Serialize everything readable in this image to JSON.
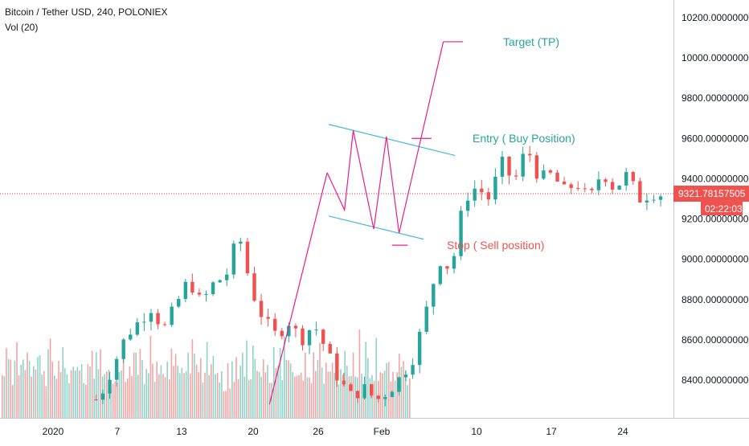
{
  "header": {
    "symbol_line": "Bitcoin / Tether USD, 240, POLONIEX",
    "volume_line": "Vol (20)"
  },
  "price_axis": {
    "labels": [
      "10200.00000000",
      "10000.00000000",
      "9800.00000000",
      "9600.00000000",
      "9400.00000000",
      "9200.00000000",
      "9000.00000000",
      "8800.00000000",
      "8600.00000000",
      "8400.00000000"
    ],
    "current_price_label": "9321.78157505",
    "countdown_label": "02:22:03"
  },
  "time_axis": {
    "labels": [
      "2020",
      "7",
      "13",
      "20",
      "26",
      "Feb",
      "10",
      "17",
      "24"
    ]
  },
  "annotations": {
    "target": "Target (TP)",
    "entry": "Entry ( Buy Position)",
    "stop": "Stop ( Sell position)"
  },
  "colors": {
    "up": "#26a69a",
    "down": "#ef5350",
    "vol_up": "#8fd3c9",
    "vol_down": "#f5a3a3",
    "channel": "#40bcd8",
    "pattern": "#e91e8c",
    "price_line": "#e53935",
    "target_text": "#26a69a",
    "stop_text": "#ef5350"
  },
  "chart_data": {
    "type": "candlestick",
    "symbol": "BTC/USDT",
    "timeframe": "240",
    "exchange": "POLONIEX",
    "ylim": [
      8220,
      10300
    ],
    "yticks": [
      10200,
      10000,
      9800,
      9600,
      9400,
      9200,
      9000,
      8800,
      8600,
      8400
    ],
    "last_price": 9321.78157505,
    "ohlc_path": [
      [
        0,
        8200
      ],
      [
        3,
        8260
      ],
      [
        6,
        8200
      ],
      [
        8,
        8330
      ],
      [
        10,
        8620
      ],
      [
        12,
        8760
      ],
      [
        13,
        8650
      ],
      [
        15,
        8900
      ],
      [
        16,
        8780
      ],
      [
        17,
        8880
      ],
      [
        18,
        8920
      ],
      [
        19,
        9130
      ],
      [
        20,
        8850
      ],
      [
        21,
        8700
      ],
      [
        22,
        8620
      ],
      [
        23,
        8690
      ],
      [
        24,
        8600
      ],
      [
        25,
        8680
      ],
      [
        26,
        8550
      ],
      [
        27,
        8400
      ],
      [
        28,
        8320
      ],
      [
        29,
        8360
      ],
      [
        30,
        8300
      ],
      [
        31,
        8350
      ],
      [
        32,
        8420
      ],
      [
        33,
        8520
      ],
      [
        34,
        8750
      ],
      [
        35,
        9000
      ],
      [
        36,
        8950
      ],
      [
        37,
        9300
      ],
      [
        38,
        9360
      ],
      [
        39,
        9300
      ],
      [
        40,
        9480
      ],
      [
        41,
        9380
      ],
      [
        42,
        9560
      ],
      [
        43,
        9400
      ],
      [
        44,
        9420
      ],
      [
        45,
        9340
      ],
      [
        46,
        9380
      ],
      [
        47,
        9290
      ],
      [
        48,
        9440
      ],
      [
        49,
        9350
      ],
      [
        50,
        9420
      ],
      [
        51,
        9300
      ],
      [
        52,
        9330
      ],
      [
        53,
        9320
      ]
    ],
    "volume_profile": [
      0.35,
      0.3,
      0.5,
      0.4,
      0.6,
      0.3,
      0.45,
      0.55,
      0.4,
      0.7,
      0.5,
      0.35,
      0.6,
      0.45,
      0.3,
      0.55,
      0.4,
      0.65,
      0.5,
      0.35,
      0.45,
      0.3,
      0.5,
      0.6,
      0.4,
      0.55,
      0.35,
      0.7,
      0.45,
      0.5,
      0.4,
      0.6,
      0.35,
      0.5,
      0.45,
      0.55,
      0.4,
      0.65,
      0.5,
      0.45,
      0.35,
      0.6,
      0.4,
      0.5,
      0.55,
      0.45,
      0.35,
      0.5,
      0.4,
      0.6,
      0.45,
      0.3,
      0.25,
      0.2
    ],
    "trend_lines": [
      {
        "name": "channel-top",
        "points": [
          [
            41.5,
            9670
          ],
          [
            57.5,
            9515
          ]
        ]
      },
      {
        "name": "channel-bottom",
        "points": [
          [
            41.5,
            9215
          ],
          [
            53.5,
            9100
          ]
        ]
      },
      {
        "name": "pattern-impulse",
        "points": [
          [
            34,
            8280
          ],
          [
            41.3,
            9430
          ]
        ]
      },
      {
        "name": "pattern-w",
        "points": [
          [
            41.3,
            9430
          ],
          [
            43.5,
            9245
          ],
          [
            44.6,
            9640
          ],
          [
            47.2,
            9150
          ],
          [
            48.8,
            9610
          ],
          [
            50.4,
            9130
          ],
          [
            56,
            10080
          ]
        ]
      },
      {
        "name": "target-marker",
        "points": [
          [
            56,
            10080
          ],
          [
            58.5,
            10080
          ]
        ]
      },
      {
        "name": "entry-marker",
        "points": [
          [
            52,
            9600
          ],
          [
            54.5,
            9600
          ]
        ]
      },
      {
        "name": "stop-marker",
        "points": [
          [
            49.5,
            9070
          ],
          [
            51.5,
            9070
          ]
        ]
      }
    ]
  }
}
